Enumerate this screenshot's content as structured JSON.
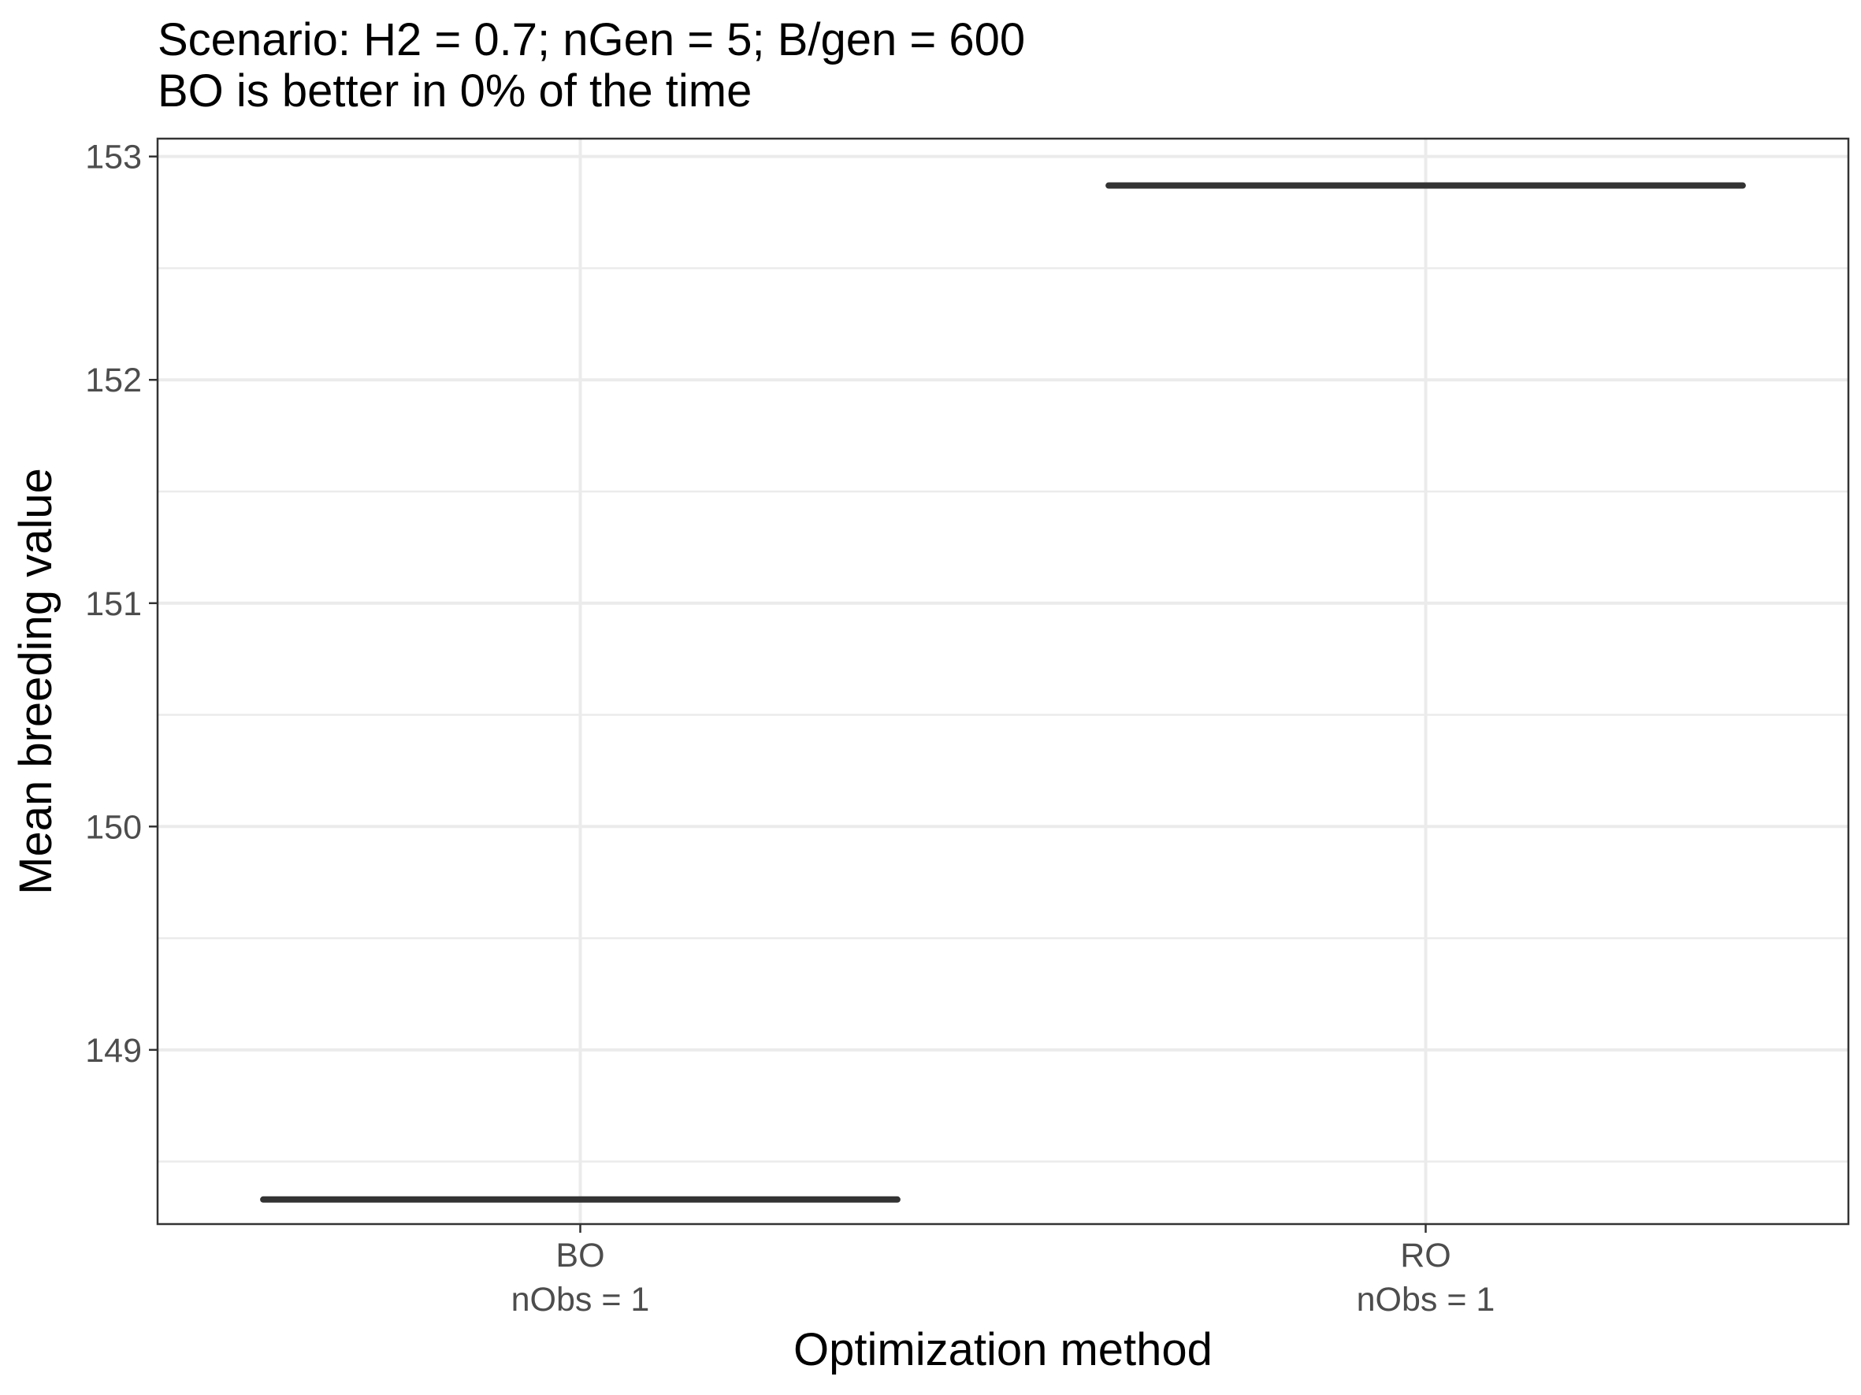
{
  "chart_data": {
    "type": "box",
    "title_lines": [
      "Scenario: H2 = 0.7; nGen = 5; B/gen = 600",
      "BO is better in 0% of the time"
    ],
    "xlabel": "Optimization method",
    "ylabel": "Mean breeding value",
    "categories": [
      "BO",
      "RO"
    ],
    "category_sublabels": [
      "nObs = 1",
      "nObs = 1"
    ],
    "values": [
      148.33,
      152.87
    ],
    "ylim": [
      148.22,
      153.08
    ],
    "yticks": [
      149,
      150,
      151,
      152,
      153
    ],
    "ytick_labels": [
      "149",
      "150",
      "151",
      "152",
      "153"
    ],
    "grid": true,
    "box_color": "#333333"
  }
}
